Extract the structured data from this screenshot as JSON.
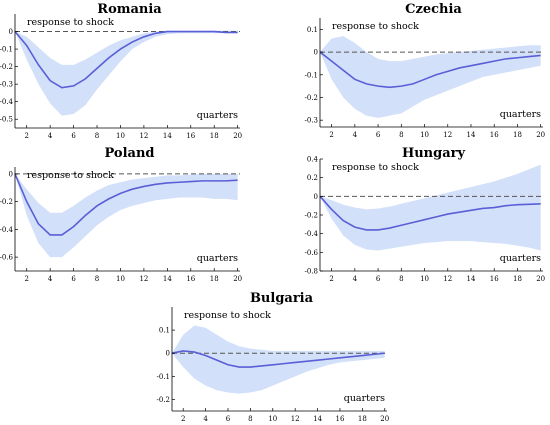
{
  "chart_data": [
    {
      "type": "line",
      "title": "Romania",
      "annotation": "response to shock",
      "xlabel": "quarters",
      "ylabel": "",
      "x": [
        1,
        2,
        3,
        4,
        5,
        6,
        7,
        8,
        9,
        10,
        11,
        12,
        13,
        14,
        15,
        16,
        17,
        18,
        19,
        20
      ],
      "xticks": [
        2,
        4,
        6,
        8,
        10,
        12,
        14,
        16,
        18,
        20
      ],
      "ylim": [
        -0.55,
        0.1
      ],
      "yticks": [
        0,
        -0.1,
        -0.2,
        -0.3,
        -0.4,
        -0.5
      ],
      "ytick_labels": [
        "0",
        "-0.1",
        "-0.2",
        "-0.3",
        "-0.4",
        "-0.5"
      ],
      "series": [
        {
          "role": "median",
          "values": [
            0,
            -0.08,
            -0.19,
            -0.28,
            -0.32,
            -0.31,
            -0.27,
            -0.21,
            -0.15,
            -0.1,
            -0.06,
            -0.03,
            -0.01,
            0,
            0,
            0,
            0,
            0,
            -0.005,
            -0.005
          ]
        },
        {
          "role": "upper",
          "values": [
            0,
            -0.03,
            -0.09,
            -0.15,
            -0.19,
            -0.19,
            -0.16,
            -0.12,
            -0.08,
            -0.05,
            -0.03,
            -0.01,
            0,
            0.005,
            0.005,
            0.005,
            0.005,
            0.005,
            0.005,
            0.005
          ]
        },
        {
          "role": "lower",
          "values": [
            0,
            -0.16,
            -0.3,
            -0.41,
            -0.48,
            -0.47,
            -0.42,
            -0.33,
            -0.25,
            -0.17,
            -0.1,
            -0.06,
            -0.03,
            -0.015,
            -0.01,
            -0.01,
            -0.01,
            -0.01,
            -0.01,
            -0.01
          ]
        }
      ],
      "zero_line": "dashed",
      "band_color": "#d3e0fa",
      "line_color": "#5a5fd6"
    },
    {
      "type": "line",
      "title": "Czechia",
      "annotation": "response to shock",
      "xlabel": "quarters",
      "ylabel": "",
      "x": [
        1,
        2,
        3,
        4,
        5,
        6,
        7,
        8,
        9,
        10,
        11,
        12,
        13,
        14,
        15,
        16,
        17,
        18,
        19,
        20
      ],
      "xticks": [
        2,
        4,
        6,
        8,
        10,
        12,
        14,
        16,
        18,
        20
      ],
      "ylim": [
        -0.33,
        0.15
      ],
      "yticks": [
        0.1,
        0,
        -0.1,
        -0.2,
        -0.3
      ],
      "ytick_labels": [
        "0.1",
        "0",
        "-0.1",
        "-0.2",
        "-0.3"
      ],
      "series": [
        {
          "role": "median",
          "values": [
            0,
            -0.04,
            -0.08,
            -0.12,
            -0.14,
            -0.15,
            -0.155,
            -0.15,
            -0.14,
            -0.12,
            -0.1,
            -0.085,
            -0.07,
            -0.06,
            -0.05,
            -0.04,
            -0.03,
            -0.025,
            -0.02,
            -0.015
          ]
        },
        {
          "role": "upper",
          "values": [
            0,
            0.06,
            0.07,
            0.04,
            0.0,
            -0.03,
            -0.04,
            -0.04,
            -0.03,
            -0.02,
            -0.01,
            -0.005,
            0.0,
            0.005,
            0.01,
            0.015,
            0.02,
            0.025,
            0.03,
            0.03
          ]
        },
        {
          "role": "lower",
          "values": [
            0,
            -0.12,
            -0.2,
            -0.25,
            -0.28,
            -0.29,
            -0.28,
            -0.27,
            -0.24,
            -0.21,
            -0.19,
            -0.17,
            -0.15,
            -0.13,
            -0.11,
            -0.1,
            -0.09,
            -0.08,
            -0.07,
            -0.06
          ]
        }
      ],
      "zero_line": "dashed",
      "band_color": "#d3e0fa",
      "line_color": "#5a5fd6"
    },
    {
      "type": "line",
      "title": "Poland",
      "annotation": "response to shock",
      "xlabel": "quarters",
      "ylabel": "",
      "x": [
        1,
        2,
        3,
        4,
        5,
        6,
        7,
        8,
        9,
        10,
        11,
        12,
        13,
        14,
        15,
        16,
        17,
        18,
        19,
        20
      ],
      "xticks": [
        2,
        4,
        6,
        8,
        10,
        12,
        14,
        16,
        18,
        20
      ],
      "ylim": [
        -0.7,
        0.05
      ],
      "yticks": [
        0,
        -0.2,
        -0.4,
        -0.6
      ],
      "ytick_labels": [
        "0",
        "-0.2",
        "-0.4",
        "-0.6"
      ],
      "series": [
        {
          "role": "median",
          "values": [
            0,
            -0.2,
            -0.36,
            -0.44,
            -0.44,
            -0.38,
            -0.3,
            -0.23,
            -0.18,
            -0.14,
            -0.11,
            -0.09,
            -0.075,
            -0.065,
            -0.06,
            -0.055,
            -0.05,
            -0.05,
            -0.05,
            -0.045
          ]
        },
        {
          "role": "upper",
          "values": [
            0,
            -0.11,
            -0.21,
            -0.28,
            -0.28,
            -0.23,
            -0.17,
            -0.12,
            -0.08,
            -0.06,
            -0.04,
            -0.03,
            -0.02,
            -0.01,
            -0.01,
            -0.005,
            0,
            0,
            0,
            0
          ]
        },
        {
          "role": "lower",
          "values": [
            0,
            -0.3,
            -0.5,
            -0.6,
            -0.6,
            -0.53,
            -0.45,
            -0.37,
            -0.31,
            -0.26,
            -0.23,
            -0.21,
            -0.19,
            -0.18,
            -0.17,
            -0.17,
            -0.17,
            -0.18,
            -0.18,
            -0.19
          ]
        }
      ],
      "zero_line": "dashed",
      "band_color": "#d3e0fa",
      "line_color": "#5a5fd6"
    },
    {
      "type": "line",
      "title": "Hungary",
      "annotation": "response to shock",
      "xlabel": "quarters",
      "ylabel": "",
      "x": [
        1,
        2,
        3,
        4,
        5,
        6,
        7,
        8,
        9,
        10,
        11,
        12,
        13,
        14,
        15,
        16,
        17,
        18,
        19,
        20
      ],
      "xticks": [
        2,
        4,
        6,
        8,
        10,
        12,
        14,
        16,
        18,
        20
      ],
      "ylim": [
        -0.8,
        0.4
      ],
      "yticks": [
        0.4,
        0.2,
        0,
        -0.2,
        -0.4,
        -0.6,
        -0.8
      ],
      "ytick_labels": [
        "0.4",
        "0.2",
        "0",
        "-0.2",
        "-0.4",
        "-0.6",
        "-0.8"
      ],
      "series": [
        {
          "role": "median",
          "values": [
            0,
            -0.14,
            -0.26,
            -0.33,
            -0.36,
            -0.36,
            -0.34,
            -0.31,
            -0.28,
            -0.25,
            -0.22,
            -0.19,
            -0.17,
            -0.15,
            -0.13,
            -0.12,
            -0.1,
            -0.09,
            -0.085,
            -0.08
          ]
        },
        {
          "role": "upper",
          "values": [
            0,
            -0.04,
            -0.09,
            -0.12,
            -0.14,
            -0.13,
            -0.11,
            -0.08,
            -0.05,
            -0.02,
            0.01,
            0.04,
            0.07,
            0.1,
            0.13,
            0.16,
            0.2,
            0.24,
            0.29,
            0.34
          ]
        },
        {
          "role": "lower",
          "values": [
            0,
            -0.24,
            -0.42,
            -0.52,
            -0.57,
            -0.58,
            -0.56,
            -0.54,
            -0.52,
            -0.5,
            -0.49,
            -0.48,
            -0.48,
            -0.48,
            -0.49,
            -0.5,
            -0.51,
            -0.53,
            -0.55,
            -0.58
          ]
        }
      ],
      "zero_line": "dashed",
      "band_color": "#d3e0fa",
      "line_color": "#5a5fd6"
    },
    {
      "type": "line",
      "title": "Bulgaria",
      "annotation": "response to shock",
      "xlabel": "quarters",
      "ylabel": "",
      "x": [
        1,
        2,
        3,
        4,
        5,
        6,
        7,
        8,
        9,
        10,
        11,
        12,
        13,
        14,
        15,
        16,
        17,
        18,
        19,
        20
      ],
      "xticks": [
        2,
        4,
        6,
        8,
        10,
        12,
        14,
        16,
        18,
        20
      ],
      "ylim": [
        -0.25,
        0.2
      ],
      "yticks": [
        0.1,
        0,
        -0.1,
        -0.2
      ],
      "ytick_labels": [
        "0.1",
        "0",
        "-0.1",
        "-0.2"
      ],
      "series": [
        {
          "role": "median",
          "values": [
            0,
            0.01,
            0.005,
            -0.01,
            -0.03,
            -0.05,
            -0.06,
            -0.06,
            -0.055,
            -0.05,
            -0.045,
            -0.04,
            -0.035,
            -0.03,
            -0.025,
            -0.02,
            -0.015,
            -0.01,
            -0.005,
            0
          ]
        },
        {
          "role": "upper",
          "values": [
            0,
            0.08,
            0.12,
            0.11,
            0.08,
            0.05,
            0.03,
            0.02,
            0.015,
            0.01,
            0.01,
            0.01,
            0.01,
            0.01,
            0.01,
            0.01,
            0.01,
            0.01,
            0.01,
            0.01
          ]
        },
        {
          "role": "lower",
          "values": [
            0,
            -0.06,
            -0.11,
            -0.14,
            -0.16,
            -0.17,
            -0.175,
            -0.17,
            -0.16,
            -0.14,
            -0.12,
            -0.1,
            -0.08,
            -0.065,
            -0.05,
            -0.04,
            -0.035,
            -0.03,
            -0.025,
            -0.02
          ]
        }
      ],
      "zero_line": "dashed",
      "band_color": "#d3e0fa",
      "line_color": "#5a5fd6"
    }
  ]
}
